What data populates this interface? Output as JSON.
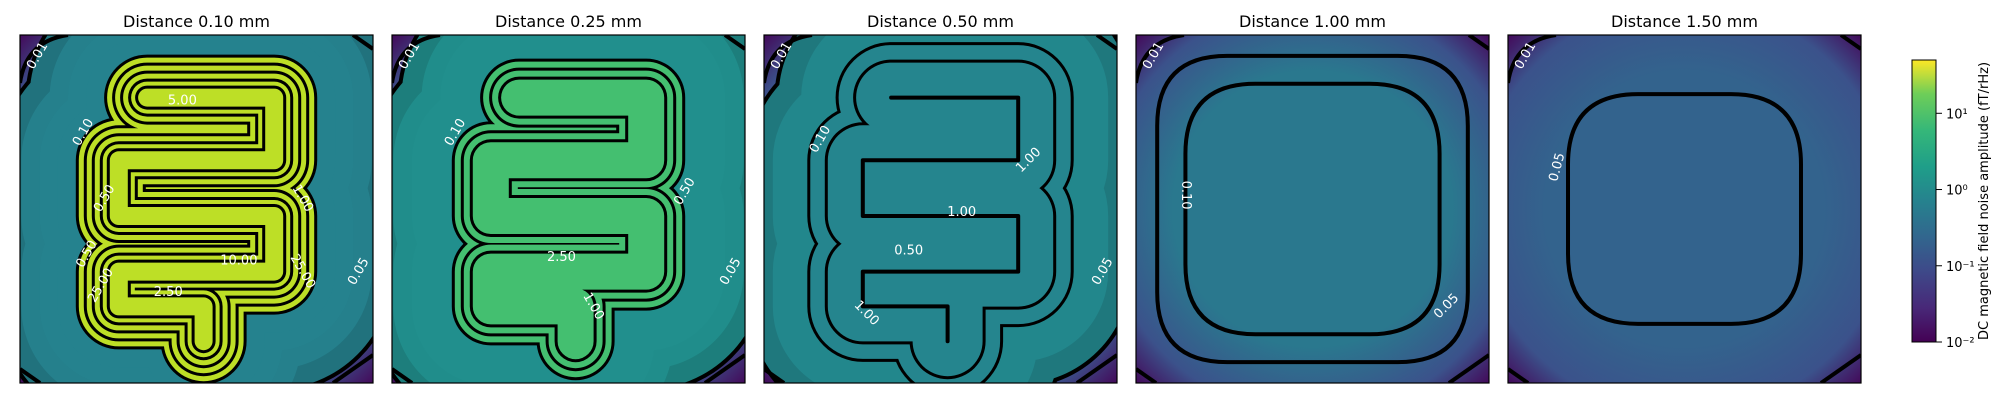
{
  "colorbar": {
    "label": "DC magnetic field noise amplitude (fT/rHz)",
    "scale": "log",
    "colormap": "viridis",
    "range": [
      0.01,
      50
    ],
    "tick_labels": [
      "10⁻²",
      "10⁻¹",
      "10⁰",
      "10¹"
    ],
    "tick_values": [
      0.01,
      0.1,
      1,
      10
    ]
  },
  "chart_data": [
    {
      "type": "heatmap",
      "title": "Distance 0.10 mm",
      "distance_mm": 0.1,
      "background": "#26828e",
      "meander_color": "#bddf26",
      "contour_levels": [
        0.01,
        0.05,
        0.1,
        0.5,
        1.0,
        2.5,
        5.0,
        10.0,
        25.0
      ],
      "contour_labels": [
        "0.01",
        "0.10",
        "0.50",
        "1.00",
        "2.50",
        "5.00",
        "10.00",
        "25.00",
        "0.05",
        "25.00",
        "0.50"
      ]
    },
    {
      "type": "heatmap",
      "title": "Distance 0.25 mm",
      "distance_mm": 0.25,
      "background": "#21908d",
      "meander_color": "#44bf70",
      "contour_levels": [
        0.01,
        0.05,
        0.1,
        0.5,
        1.0,
        2.5
      ],
      "contour_labels": [
        "0.01",
        "0.10",
        "0.50",
        "2.50",
        "1.00",
        "0.05"
      ]
    },
    {
      "type": "heatmap",
      "title": "Distance 0.50 mm",
      "distance_mm": 0.5,
      "background": "#23898e",
      "meander_color": "#22a884",
      "contour_levels": [
        0.01,
        0.05,
        0.1,
        0.5,
        1.0
      ],
      "contour_labels": [
        "0.01",
        "0.10",
        "1.00",
        "1.00",
        "0.50",
        "1.00",
        "0.05"
      ]
    },
    {
      "type": "heatmap",
      "title": "Distance 1.00 mm",
      "distance_mm": 1.0,
      "background": "#2a788e",
      "meander_color": "#2c728e",
      "contour_levels": [
        0.01,
        0.05,
        0.1
      ],
      "contour_labels": [
        "0.01",
        "0.10",
        "0.05"
      ]
    },
    {
      "type": "heatmap",
      "title": "Distance 1.50 mm",
      "distance_mm": 1.5,
      "background": "#33638d",
      "meander_color": "#31688e",
      "contour_levels": [
        0.01,
        0.05
      ],
      "contour_labels": [
        "0.01",
        "0.05"
      ]
    }
  ]
}
